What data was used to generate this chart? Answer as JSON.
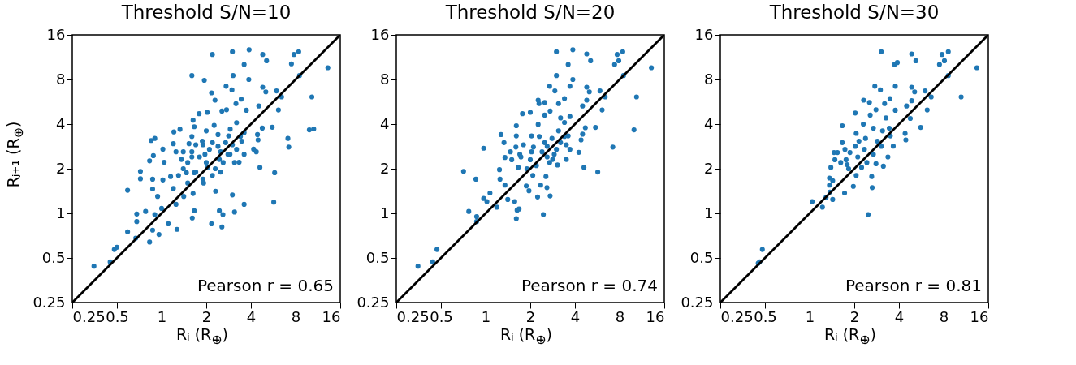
{
  "chart_data": [
    {
      "type": "scatter",
      "title": "Threshold S/N=10",
      "xlabel": "Rⱼ (R$_{⊕}$)",
      "ylabel": "Rⱼ₊₁ (R$_{⊕}$)",
      "xlim": [
        0.25,
        16
      ],
      "ylim": [
        0.25,
        16
      ],
      "xticks": [
        0.25,
        0.5,
        1,
        2,
        4,
        8,
        16
      ],
      "yticks": [
        0.25,
        0.5,
        1,
        2,
        4,
        8,
        16
      ],
      "log": "xy",
      "annotations": [
        "Pearson r = 0.65"
      ],
      "series": [
        {
          "color": "#1f77b4",
          "x": [
            0.35,
            0.45,
            0.48,
            0.5,
            0.59,
            0.67,
            0.68,
            0.68,
            0.78,
            0.83,
            0.87,
            0.9,
            0.96,
            1.11,
            1.27,
            0.59,
            0.72,
            0.72,
            0.83,
            0.85,
            0.9,
            0.88,
            0.87,
            0.87,
            1.02,
            1.02,
            1.04,
            1.0,
            0.94,
            1.21,
            1.33,
            1.2,
            1.25,
            1.15,
            1.2,
            1.25,
            1.41,
            1.47,
            1.36,
            1.6,
            1.63,
            1.66,
            1.53,
            1.6,
            1.66,
            1.63,
            1.66,
            1.61,
            1.79,
            1.94,
            1.88,
            1.96,
            2.04,
            1.92,
            2.03,
            2.17,
            2.2,
            2.17,
            2.26,
            2.29,
            2.4,
            2.45,
            2.31,
            2.45,
            2.55,
            2.59,
            2.55,
            2.72,
            3.0,
            3.03,
            2.98,
            2.74,
            2.83,
            2.89,
            3.0,
            3.1,
            3.2,
            3.17,
            3.44,
            3.73,
            3.6,
            3.6,
            3.89,
            3.87,
            3.47,
            3.33,
            3.6,
            4.17,
            4.35,
            4.6,
            4.47,
            4.43,
            4.52,
            4.77,
            4.8,
            4.8,
            5.04,
            5.1,
            5.57,
            5.78,
            5.7,
            5.95,
            6.13,
            6.44,
            7.1,
            7.2,
            7.5,
            7.8,
            8.4,
            8.5,
            9.9,
            10.6,
            10.3,
            13.2,
            1.4,
            1.5,
            1.6,
            1.7,
            1.8,
            1.9,
            2.0,
            2.1,
            2.2,
            2.3,
            2.4,
            2.5,
            2.6,
            2.7,
            2.8,
            3.0,
            3.2,
            3.4,
            3.6,
            1.3,
            1.5,
            1.7,
            1.9,
            2.2,
            2.5,
            2.9,
            3.1,
            1.4,
            1.6,
            2.0
          ],
          "values": [
            0.44,
            0.47,
            0.57,
            0.59,
            0.75,
            0.68,
            0.88,
            0.99,
            1.03,
            0.64,
            0.77,
            0.98,
            0.72,
            0.85,
            0.78,
            1.43,
            1.92,
            1.71,
            2.26,
            3.1,
            3.2,
            2.45,
            1.7,
            1.46,
            1.68,
            2.71,
            2.21,
            1.08,
            1.3,
            3.54,
            3.69,
            2.95,
            2.6,
            1.77,
            1.47,
            1.15,
            1.3,
            1.88,
            2.31,
            8.5,
            4.25,
            3.84,
            2.95,
            2.4,
            1.88,
            1.36,
            1.04,
            0.93,
            4.7,
            7.9,
            3.07,
            2.5,
            2.04,
            1.6,
            4.8,
            6.5,
            11.8,
            0.85,
            3.92,
            5.8,
            2.83,
            2.31,
            1.41,
            1.04,
            0.81,
            0.98,
            4.9,
            7.2,
            12.3,
            8.5,
            6.8,
            5.0,
            3.33,
            2.5,
            1.33,
            1.02,
            4.09,
            5.5,
            5.9,
            4.96,
            1.15,
            10.1,
            12.7,
            8.0,
            3.07,
            2.21,
            2.5,
            2.71,
            2.6,
            2.04,
            3.13,
            3.4,
            5.3,
            3.76,
            7.1,
            11.8,
            6.6,
            10.7,
            3.81,
            1.88,
            1.19,
            6.7,
            4.98,
            6.1,
            3.2,
            2.8,
            10.2,
            11.8,
            12.3,
            8.5,
            3.66,
            3.71,
            6.1,
            9.6,
            2.0,
            2.2,
            2.6,
            1.9,
            2.4,
            2.9,
            2.2,
            2.7,
            3.0,
            2.0,
            3.4,
            2.6,
            2.2,
            3.0,
            2.5,
            2.9,
            2.7,
            3.3,
            3.5,
            1.8,
            1.6,
            2.9,
            1.7,
            1.8,
            1.9,
            3.7,
            2.2,
            2.6,
            3.3,
            3.6
          ]
        },
        {
          "type": "line",
          "color": "#000000",
          "x": [
            0.25,
            16
          ],
          "values": [
            0.25,
            16
          ]
        }
      ]
    },
    {
      "type": "scatter",
      "title": "Threshold S/N=20",
      "xlabel": "Rⱼ (R$_{⊕}$)",
      "xlim": [
        0.25,
        16
      ],
      "ylim": [
        0.25,
        16
      ],
      "xticks": [
        0.25,
        0.5,
        1,
        2,
        4,
        8,
        16
      ],
      "yticks": [
        0.25,
        0.5,
        1,
        2,
        4,
        8,
        16
      ],
      "log": "xy",
      "annotations": [
        "Pearson r = 0.74"
      ],
      "series": [
        {
          "color": "#1f77b4",
          "x": [
            0.35,
            0.44,
            0.47,
            0.77,
            0.87,
            0.87,
            0.71,
            0.86,
            0.97,
            0.97,
            1.02,
            1.07,
            1.19,
            1.27,
            1.33,
            1.24,
            1.25,
            1.35,
            1.35,
            1.41,
            1.47,
            1.57,
            1.61,
            1.61,
            1.63,
            1.61,
            1.68,
            1.77,
            1.66,
            1.73,
            1.88,
            1.96,
            2.0,
            2.04,
            2.08,
            2.04,
            2.24,
            2.26,
            2.26,
            2.29,
            2.35,
            2.45,
            2.5,
            2.5,
            2.55,
            2.59,
            2.72,
            2.7,
            2.72,
            2.6,
            2.83,
            2.93,
            3.0,
            3.0,
            3.1,
            3.2,
            3.05,
            3.4,
            3.4,
            3.5,
            3.6,
            3.7,
            3.7,
            3.87,
            3.87,
            3.6,
            3.7,
            4.25,
            4.4,
            4.5,
            4.5,
            4.6,
            4.7,
            4.8,
            4.8,
            4.8,
            5.0,
            5.1,
            5.5,
            5.7,
            5.9,
            6.1,
            6.4,
            7.2,
            7.4,
            7.7,
            7.9,
            8.4,
            8.5,
            10.0,
            10.4,
            13.1,
            1.5,
            1.7,
            1.8,
            2.0,
            2.1,
            2.2,
            2.4,
            2.5,
            2.6,
            2.8,
            3.0,
            3.2,
            3.4,
            1.9,
            2.3,
            2.7,
            3.1,
            1.6,
            2.9,
            3.5
          ],
          "values": [
            0.44,
            0.47,
            0.57,
            1.03,
            0.95,
            0.88,
            1.92,
            1.7,
            2.75,
            1.26,
            1.2,
            1.37,
            1.1,
            3.4,
            3.0,
            1.97,
            1.7,
            1.55,
            2.38,
            1.24,
            2.6,
            1.2,
            3.9,
            3.33,
            1.05,
            0.92,
            1.07,
            4.7,
            2.04,
            2.4,
            1.53,
            1.42,
            4.8,
            3.33,
            1.8,
            2.6,
            1.29,
            3.98,
            5.8,
            5.5,
            1.55,
            0.98,
            5.6,
            4.6,
            1.77,
            1.49,
            1.31,
            7.2,
            4.9,
            2.83,
            2.31,
            6.7,
            12.3,
            8.5,
            5.5,
            4.4,
            2.12,
            5.95,
            4.1,
            2.31,
            10.1,
            7.2,
            4.5,
            12.7,
            8.0,
            3.33,
            2.7,
            2.58,
            3.13,
            5.3,
            3.42,
            2.04,
            3.78,
            11.9,
            7.1,
            5.8,
            6.6,
            10.7,
            3.8,
            1.9,
            6.7,
            4.98,
            6.1,
            2.8,
            10.1,
            11.8,
            10.7,
            12.3,
            8.5,
            3.66,
            6.1,
            9.6,
            2.3,
            2.5,
            2.9,
            2.3,
            2.8,
            2.1,
            2.6,
            3.0,
            2.4,
            3.2,
            2.7,
            3.0,
            3.3,
            2.0,
            3.3,
            2.2,
            3.6,
            2.8,
            2.5,
            2.9
          ]
        },
        {
          "type": "line",
          "color": "#000000",
          "x": [
            0.25,
            16
          ],
          "values": [
            0.25,
            16
          ]
        }
      ]
    },
    {
      "type": "scatter",
      "title": "Threshold S/N=30",
      "xlabel": "Rⱼ (R$_{⊕}$)",
      "xlim": [
        0.25,
        16
      ],
      "ylim": [
        0.25,
        16
      ],
      "xticks": [
        0.25,
        0.5,
        1,
        2,
        4,
        8,
        16
      ],
      "yticks": [
        0.25,
        0.5,
        1,
        2,
        4,
        8,
        16
      ],
      "log": "xy",
      "annotations": [
        "Pearson r = 0.81"
      ],
      "series": [
        {
          "color": "#1f77b4",
          "x": [
            0.45,
            0.46,
            0.48,
            1.04,
            1.22,
            1.29,
            1.43,
            1.37,
            1.36,
            1.43,
            1.36,
            1.39,
            1.48,
            1.46,
            1.54,
            1.66,
            1.66,
            1.62,
            1.72,
            1.76,
            1.79,
            1.83,
            1.73,
            1.87,
            1.97,
            2.03,
            2.06,
            2.03,
            2.06,
            2.11,
            2.15,
            2.24,
            2.31,
            2.3,
            2.34,
            2.38,
            2.43,
            2.48,
            2.53,
            2.56,
            2.62,
            2.64,
            2.69,
            2.69,
            2.75,
            2.8,
            2.8,
            2.86,
            3.0,
            3.04,
            3.04,
            3.1,
            3.14,
            3.2,
            3.27,
            3.37,
            3.44,
            3.48,
            3.5,
            3.66,
            3.73,
            3.78,
            3.78,
            3.9,
            4.4,
            4.45,
            4.5,
            4.77,
            4.87,
            4.87,
            4.87,
            5.1,
            5.2,
            5.6,
            6.0,
            6.2,
            6.6,
            7.5,
            7.8,
            8.1,
            8.6,
            8.6,
            10.5,
            13.4
          ],
          "values": [
            0.46,
            0.47,
            0.57,
            1.2,
            1.1,
            1.28,
            1.24,
            1.39,
            1.55,
            1.66,
            1.73,
            2.04,
            2.3,
            2.57,
            2.57,
            3.9,
            3.0,
            2.2,
            1.37,
            2.3,
            2.13,
            2.0,
            2.7,
            2.57,
            1.52,
            4.75,
            1.8,
            2.83,
            3.46,
            2.4,
            3.07,
            2.04,
            5.8,
            4.0,
            2.7,
            3.2,
            2.2,
            0.98,
            5.6,
            4.6,
            1.77,
            1.49,
            3.75,
            2.5,
            7.2,
            5.0,
            2.16,
            3.07,
            6.8,
            12.3,
            2.83,
            3.6,
            2.08,
            5.5,
            4.4,
            2.4,
            3.75,
            5.95,
            3.33,
            2.84,
            10.1,
            7.2,
            4.96,
            10.4,
            3.46,
            3.13,
            5.3,
            4.37,
            7.1,
            5.75,
            11.9,
            6.6,
            10.7,
            3.8,
            6.7,
            4.98,
            6.1,
            10.1,
            11.8,
            10.7,
            12.3,
            8.5,
            6.1,
            9.6
          ]
        },
        {
          "type": "line",
          "color": "#000000",
          "x": [
            0.25,
            16
          ],
          "values": [
            0.25,
            16
          ]
        }
      ]
    }
  ]
}
